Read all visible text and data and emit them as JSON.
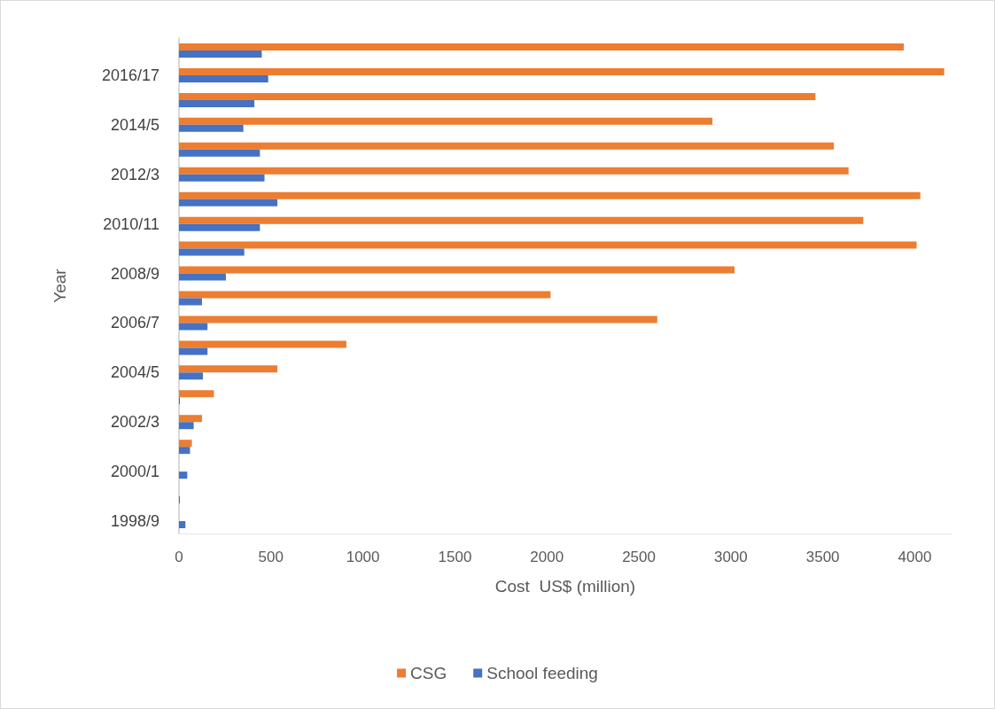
{
  "chart_data": {
    "type": "bar",
    "orientation": "horizontal",
    "xlabel": "Cost  US$ (million)",
    "ylabel": "Year",
    "categories": [
      null,
      "2016/17",
      null,
      "2014/5",
      null,
      "2012/3",
      null,
      "2010/11",
      null,
      "2008/9",
      null,
      "2006/7",
      null,
      "2004/5",
      null,
      "2002/3",
      null,
      "2000/1",
      null,
      "1998/9"
    ],
    "series": [
      {
        "name": "CSG",
        "color": "#ed7d31",
        "values": [
          3940,
          4160,
          3460,
          2900,
          3560,
          3640,
          4030,
          3720,
          4010,
          3020,
          2020,
          2600,
          910,
          535,
          190,
          125,
          70,
          null,
          null,
          null
        ]
      },
      {
        "name": "School feeding",
        "color": "#4472c4",
        "values": [
          450,
          485,
          410,
          350,
          440,
          465,
          535,
          440,
          355,
          255,
          125,
          155,
          155,
          130,
          5,
          80,
          60,
          45,
          5,
          35
        ]
      }
    ],
    "xlim": [
      0,
      4200
    ],
    "xticks": [
      0,
      500,
      1000,
      1500,
      2000,
      2500,
      3000,
      3500,
      4000
    ],
    "grid": false,
    "legend": "bottom"
  }
}
